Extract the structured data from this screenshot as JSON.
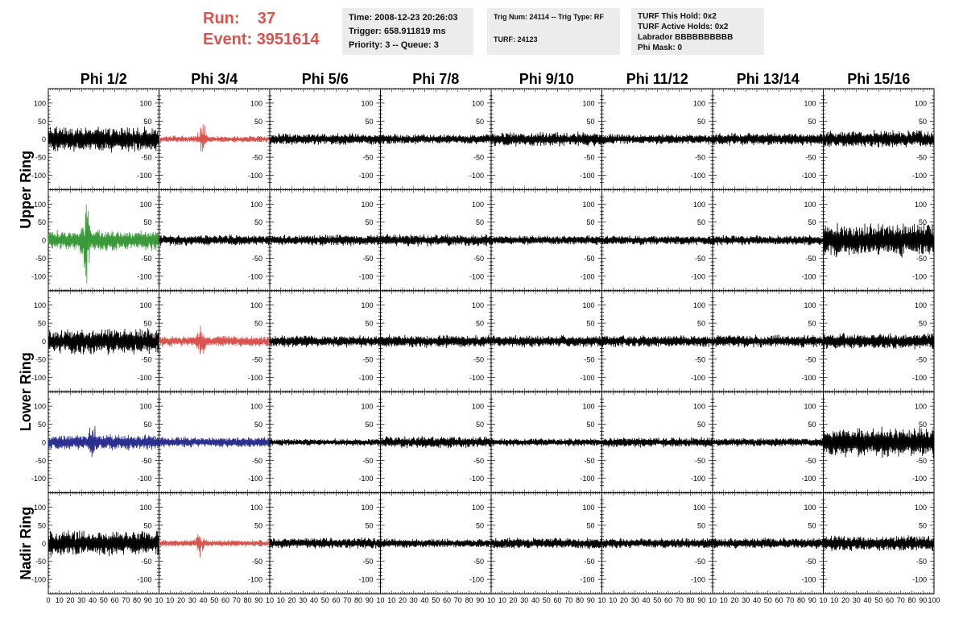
{
  "header": {
    "run_label": "Run:",
    "run_value": "37",
    "event_label": "Event:",
    "event_value": "3951614",
    "time_box": [
      "Time: 2008-12-23 20:26:03",
      "Trigger: 658.911819 ms",
      "Priority: 3 -- Queue: 3"
    ],
    "trig_box": [
      "Trig Num: 24114 -- Trig Type: RF",
      "",
      "TURF: 24123"
    ],
    "turf_box": [
      "TURF This Hold: 0x2",
      "TURF Active Holds: 0x2",
      "Labrador BBBBBBBBBB",
      "Phi Mask: 0"
    ]
  },
  "colors": {
    "red": "#d9534f",
    "green": "#3a9a3a",
    "blue": "#2b2f8f",
    "black": "#000000",
    "header_bg": "#ececec"
  },
  "chart_data": {
    "type": "line",
    "columns": [
      "Phi 1/2",
      "Phi 3/4",
      "Phi 5/6",
      "Phi 7/8",
      "Phi 9/10",
      "Phi 11/12",
      "Phi 13/14",
      "Phi 15/16"
    ],
    "row_groups": [
      {
        "label": "Upper Ring",
        "rows": [
          0,
          1
        ]
      },
      {
        "label": "Lower Ring",
        "rows": [
          2,
          3
        ]
      },
      {
        "label": "Nadir Ring",
        "rows": [
          4
        ]
      }
    ],
    "xlim": [
      0,
      100
    ],
    "ylim": [
      -140,
      140
    ],
    "x_ticks": [
      0,
      10,
      20,
      30,
      40,
      50,
      60,
      70,
      80,
      90,
      100
    ],
    "x_tick_labels_first": [
      "0",
      "10",
      "20",
      "30",
      "40",
      "50",
      "60",
      "70",
      "80",
      "90",
      "10"
    ],
    "x_tick_labels_middle": [
      "10",
      "20",
      "30",
      "40",
      "50",
      "60",
      "70",
      "80",
      "90",
      "10"
    ],
    "x_tick_labels_last": [
      "10",
      "20",
      "30",
      "40",
      "50",
      "60",
      "70",
      "80",
      "90",
      "100"
    ],
    "y_ticks": [
      -100,
      -50,
      0,
      50,
      100
    ],
    "y_tick_labels": [
      "-100",
      "-50",
      "0",
      "50",
      "100"
    ],
    "panels": [
      [
        {
          "color": "black",
          "amp": 32,
          "burst": 0,
          "seed": 11
        },
        {
          "color": "red",
          "amp": 9,
          "burst": 48,
          "seed": 12
        },
        {
          "color": "black",
          "amp": 15,
          "burst": 0,
          "seed": 13
        },
        {
          "color": "black",
          "amp": 13,
          "burst": 0,
          "seed": 14
        },
        {
          "color": "black",
          "amp": 18,
          "burst": 0,
          "seed": 15
        },
        {
          "color": "black",
          "amp": 13,
          "burst": 0,
          "seed": 16
        },
        {
          "color": "black",
          "amp": 16,
          "burst": 0,
          "seed": 17
        },
        {
          "color": "black",
          "amp": 22,
          "burst": 0,
          "seed": 18
        }
      ],
      [
        {
          "color": "green",
          "amp": 26,
          "burst": 120,
          "seed": 21
        },
        {
          "color": "black",
          "amp": 14,
          "burst": 0,
          "seed": 22
        },
        {
          "color": "black",
          "amp": 14,
          "burst": 0,
          "seed": 23
        },
        {
          "color": "black",
          "amp": 15,
          "burst": 0,
          "seed": 24
        },
        {
          "color": "black",
          "amp": 12,
          "burst": 0,
          "seed": 25
        },
        {
          "color": "black",
          "amp": 12,
          "burst": 0,
          "seed": 26
        },
        {
          "color": "black",
          "amp": 13,
          "burst": 0,
          "seed": 27
        },
        {
          "color": "black",
          "amp": 42,
          "burst": 0,
          "seed": 28
        }
      ],
      [
        {
          "color": "black",
          "amp": 32,
          "burst": 0,
          "seed": 31
        },
        {
          "color": "red",
          "amp": 14,
          "burst": 50,
          "seed": 32
        },
        {
          "color": "black",
          "amp": 15,
          "burst": 0,
          "seed": 33
        },
        {
          "color": "black",
          "amp": 16,
          "burst": 0,
          "seed": 34
        },
        {
          "color": "black",
          "amp": 15,
          "burst": 0,
          "seed": 35
        },
        {
          "color": "black",
          "amp": 15,
          "burst": 0,
          "seed": 36
        },
        {
          "color": "black",
          "amp": 16,
          "burst": 0,
          "seed": 37
        },
        {
          "color": "black",
          "amp": 20,
          "burst": 0,
          "seed": 38
        }
      ],
      [
        {
          "color": "blue",
          "amp": 20,
          "burst": 45,
          "seed": 41
        },
        {
          "color": "blue",
          "amp": 14,
          "burst": 0,
          "seed": 42
        },
        {
          "color": "black",
          "amp": 9,
          "burst": 0,
          "seed": 43
        },
        {
          "color": "black",
          "amp": 15,
          "burst": 0,
          "seed": 44
        },
        {
          "color": "black",
          "amp": 10,
          "burst": 0,
          "seed": 45
        },
        {
          "color": "black",
          "amp": 13,
          "burst": 0,
          "seed": 46
        },
        {
          "color": "black",
          "amp": 11,
          "burst": 0,
          "seed": 47
        },
        {
          "color": "black",
          "amp": 38,
          "burst": 0,
          "seed": 48
        }
      ],
      [
        {
          "color": "black",
          "amp": 32,
          "burst": 0,
          "seed": 51
        },
        {
          "color": "red",
          "amp": 9,
          "burst": 40,
          "seed": 52
        },
        {
          "color": "black",
          "amp": 14,
          "burst": 0,
          "seed": 53
        },
        {
          "color": "black",
          "amp": 12,
          "burst": 0,
          "seed": 54
        },
        {
          "color": "black",
          "amp": 14,
          "burst": 0,
          "seed": 55
        },
        {
          "color": "black",
          "amp": 13,
          "burst": 0,
          "seed": 56
        },
        {
          "color": "black",
          "amp": 14,
          "burst": 0,
          "seed": 57
        },
        {
          "color": "black",
          "amp": 20,
          "burst": 0,
          "seed": 58
        }
      ]
    ]
  }
}
